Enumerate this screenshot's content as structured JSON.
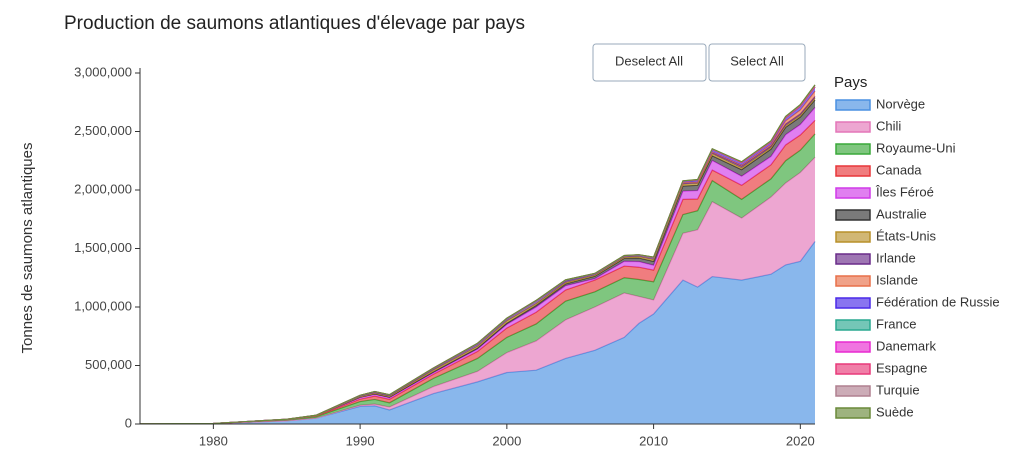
{
  "chart_data": {
    "type": "stacked-area",
    "title": "Production de saumons atlantiques d'élevage par pays",
    "y_label": "Tonnes de saumons atlantiques",
    "legend_title": "Pays",
    "buttons": [
      "Deselect All",
      "Select All"
    ],
    "x": [
      1975,
      1980,
      1985,
      1987,
      1990,
      1991,
      1992,
      1995,
      1998,
      2000,
      2002,
      2004,
      2006,
      2008,
      2009,
      2010,
      2012,
      2013,
      2014,
      2016,
      2018,
      2019,
      2020,
      2021
    ],
    "xlim": [
      1975,
      2021
    ],
    "xticks": [
      1980,
      1990,
      2000,
      2010,
      2020
    ],
    "ylim": [
      0,
      3000000
    ],
    "yticks": [
      0,
      {
        "value": 500000,
        "label": "500,000"
      },
      {
        "value": 1000000,
        "label": "1,000,000"
      },
      {
        "value": 1500000,
        "label": "1,500,000"
      },
      {
        "value": 2000000,
        "label": "2,000,000"
      },
      {
        "value": 2500000,
        "label": "2,500,000"
      },
      {
        "value": 3000000,
        "label": "3,000,000"
      }
    ],
    "series": [
      {
        "name": "Norvège",
        "color": "#4a90e2",
        "values": [
          2000,
          4000,
          28000,
          50000,
          150000,
          155000,
          120000,
          260000,
          360000,
          440000,
          460000,
          560000,
          630000,
          740000,
          860000,
          940000,
          1230000,
          1170000,
          1260000,
          1230000,
          1280000,
          1360000,
          1390000,
          1560000
        ]
      },
      {
        "name": "Chili",
        "color": "#e377b8",
        "values": [
          0,
          0,
          0,
          0,
          10000,
          15000,
          25000,
          60000,
          90000,
          170000,
          250000,
          330000,
          370000,
          380000,
          230000,
          120000,
          400000,
          490000,
          640000,
          530000,
          660000,
          700000,
          760000,
          720000
        ]
      },
      {
        "name": "Royaume-Uni",
        "color": "#3aa83a",
        "values": [
          500,
          1000,
          7000,
          12000,
          32000,
          40000,
          36000,
          70000,
          110000,
          130000,
          145000,
          160000,
          130000,
          130000,
          145000,
          155000,
          160000,
          163000,
          180000,
          160000,
          155000,
          190000,
          190000,
          200000
        ]
      },
      {
        "name": "Canada",
        "color": "#e8373a",
        "values": [
          0,
          0,
          2000,
          5000,
          20000,
          28000,
          30000,
          35000,
          60000,
          80000,
          100000,
          95000,
          100000,
          100000,
          105000,
          100000,
          130000,
          100000,
          90000,
          120000,
          120000,
          135000,
          130000,
          115000
        ]
      },
      {
        "name": "Îles Féroé",
        "color": "#d03ae8",
        "values": [
          0,
          0,
          1000,
          3000,
          15000,
          16000,
          15000,
          14000,
          20000,
          32000,
          45000,
          37000,
          12000,
          40000,
          48000,
          42000,
          70000,
          72000,
          82000,
          78000,
          72000,
          88000,
          90000,
          110000
        ]
      },
      {
        "name": "Australie",
        "color": "#333333",
        "values": [
          0,
          0,
          0,
          0,
          2000,
          3000,
          4000,
          7000,
          8000,
          10000,
          14000,
          15000,
          21000,
          26000,
          30000,
          33000,
          44000,
          45000,
          40000,
          56000,
          62000,
          63000,
          64000,
          65000
        ]
      },
      {
        "name": "États-Unis",
        "color": "#b8902a",
        "values": [
          0,
          0,
          100,
          500,
          5000,
          6000,
          6000,
          15000,
          15000,
          18000,
          14000,
          11000,
          8000,
          8000,
          12000,
          15000,
          15000,
          16000,
          18000,
          15000,
          14000,
          14000,
          14000,
          15000
        ]
      },
      {
        "name": "Irlande",
        "color": "#6a2c8a",
        "values": [
          0,
          0,
          2000,
          3000,
          6000,
          9000,
          9000,
          12000,
          20000,
          18000,
          23000,
          14000,
          12000,
          12000,
          12000,
          15000,
          12000,
          10000,
          12000,
          16000,
          13000,
          14000,
          13000,
          14000
        ]
      },
      {
        "name": "Islande",
        "color": "#e8704a",
        "values": [
          0,
          0,
          100,
          500,
          3000,
          3000,
          3000,
          3000,
          3000,
          3000,
          1500,
          6000,
          1000,
          300,
          500,
          1000,
          3000,
          3000,
          4000,
          8000,
          13000,
          27000,
          33000,
          46000
        ]
      },
      {
        "name": "Fédération de Russie",
        "color": "#4a2ae8",
        "values": [
          0,
          0,
          0,
          0,
          0,
          0,
          0,
          0,
          0,
          0,
          0,
          0,
          0,
          500,
          1000,
          2000,
          10000,
          15000,
          20000,
          20000,
          20000,
          25000,
          30000,
          35000
        ]
      },
      {
        "name": "France",
        "color": "#2aa890",
        "values": [
          0,
          0,
          100,
          300,
          1000,
          1000,
          1000,
          1000,
          1000,
          500,
          500,
          500,
          500,
          500,
          500,
          500,
          500,
          500,
          500,
          500,
          500,
          500,
          500,
          500
        ]
      },
      {
        "name": "Danemark",
        "color": "#e82ad0",
        "values": [
          0,
          0,
          100,
          200,
          500,
          500,
          500,
          1000,
          1000,
          1500,
          2000,
          1500,
          1500,
          1500,
          1500,
          1500,
          1500,
          1500,
          1500,
          1500,
          1500,
          1500,
          1500,
          1500
        ]
      },
      {
        "name": "Espagne",
        "color": "#e83a7a",
        "values": [
          0,
          0,
          100,
          200,
          500,
          500,
          500,
          500,
          1000,
          1000,
          1000,
          1000,
          500,
          500,
          500,
          500,
          500,
          500,
          500,
          500,
          500,
          500,
          500,
          500
        ]
      },
      {
        "name": "Turquie",
        "color": "#b08090",
        "values": [
          0,
          0,
          0,
          0,
          0,
          0,
          0,
          0,
          0,
          0,
          0,
          0,
          0,
          0,
          0,
          0,
          1000,
          2000,
          3000,
          5000,
          8000,
          10000,
          12000,
          15000
        ]
      },
      {
        "name": "Suède",
        "color": "#6a8a3a",
        "values": [
          0,
          0,
          100,
          200,
          500,
          500,
          500,
          500,
          1000,
          1000,
          1000,
          1000,
          1000,
          1000,
          1000,
          1000,
          1000,
          1000,
          1000,
          1000,
          1000,
          1000,
          1000,
          1000
        ]
      }
    ]
  }
}
